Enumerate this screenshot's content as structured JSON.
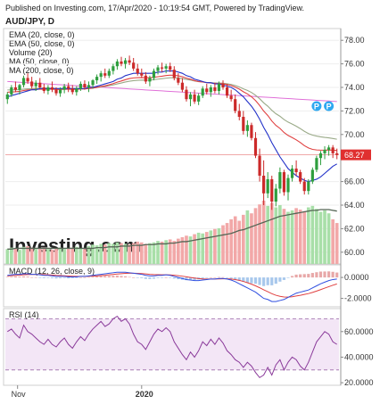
{
  "header": {
    "published": "Published on Investing.com, 17/Apr/2020 - 10:19:54 GMT, Powered by TradingView.",
    "symbol": "AUD/JPY, D"
  },
  "legend": [
    "EMA (20, close, 0)",
    "EMA (50, close, 0)",
    "Volume (20)",
    "MA (50, close, 0)",
    "MA (200, close, 0)"
  ],
  "watermark": "Investing.com",
  "markers": [
    "P",
    "P"
  ],
  "colors": {
    "up": "#2e9e3e",
    "down": "#cc2a2a",
    "ema20": "#2433c9",
    "ema50": "#e04040",
    "ma50": "#9aaa88",
    "ma200": "#e070d8",
    "vol_up": "#a8dfa8",
    "vol_down": "#f2a8a8",
    "vol_ma": "#556655",
    "macd": "#3050e0",
    "signal": "#e04040",
    "rsi": "#8a3a9a",
    "rsi_band": "#f3e6f6",
    "last_price_bg": "#e03030"
  },
  "chart_data": [
    {
      "type": "candlestick",
      "title": "AUD/JPY, D",
      "x": [
        "Nov",
        "2020"
      ],
      "ylim": [
        59,
        79
      ],
      "yticks": [
        "78.00",
        "76.00",
        "74.00",
        "72.00",
        "70.00",
        "68.27",
        "66.00",
        "64.00",
        "62.00",
        "60.00"
      ],
      "last_price": "68.27",
      "candles": [
        [
          73.0,
          73.6,
          72.6,
          73.4
        ],
        [
          73.4,
          74.2,
          73.2,
          74.0
        ],
        [
          74.0,
          74.5,
          73.6,
          73.8
        ],
        [
          73.8,
          74.3,
          73.4,
          74.2
        ],
        [
          74.2,
          75.0,
          74.0,
          74.8
        ],
        [
          74.8,
          75.2,
          74.3,
          74.5
        ],
        [
          74.5,
          74.9,
          73.9,
          74.1
        ],
        [
          74.1,
          74.6,
          73.7,
          74.4
        ],
        [
          74.4,
          74.8,
          73.9,
          74.0
        ],
        [
          74.0,
          74.3,
          73.5,
          73.7
        ],
        [
          73.7,
          74.2,
          73.4,
          74.0
        ],
        [
          74.0,
          74.5,
          73.6,
          73.8
        ],
        [
          73.8,
          74.0,
          73.3,
          73.5
        ],
        [
          73.5,
          74.0,
          73.2,
          73.8
        ],
        [
          73.8,
          74.3,
          73.5,
          74.1
        ],
        [
          74.1,
          74.4,
          73.6,
          73.9
        ],
        [
          73.9,
          74.2,
          73.4,
          73.6
        ],
        [
          73.6,
          74.1,
          73.3,
          73.9
        ],
        [
          73.9,
          74.5,
          73.7,
          74.3
        ],
        [
          74.3,
          74.6,
          73.8,
          74.0
        ],
        [
          74.0,
          74.5,
          73.6,
          74.2
        ],
        [
          74.2,
          74.7,
          73.9,
          74.6
        ],
        [
          74.6,
          75.1,
          74.3,
          74.9
        ],
        [
          74.9,
          75.4,
          74.5,
          75.2
        ],
        [
          75.2,
          75.6,
          74.8,
          75.0
        ],
        [
          75.0,
          75.6,
          74.8,
          75.4
        ],
        [
          75.4,
          76.0,
          75.1,
          75.8
        ],
        [
          75.8,
          76.4,
          75.5,
          76.2
        ],
        [
          76.2,
          76.6,
          75.8,
          76.0
        ],
        [
          76.0,
          76.5,
          75.6,
          76.3
        ],
        [
          76.3,
          76.7,
          75.9,
          76.1
        ],
        [
          76.1,
          76.5,
          75.4,
          75.6
        ],
        [
          75.6,
          76.0,
          75.0,
          75.2
        ],
        [
          75.2,
          75.6,
          74.8,
          75.0
        ],
        [
          75.0,
          75.3,
          74.3,
          74.5
        ],
        [
          74.5,
          75.0,
          74.1,
          74.8
        ],
        [
          74.8,
          75.6,
          74.6,
          75.4
        ],
        [
          75.4,
          75.9,
          75.1,
          75.7
        ],
        [
          75.7,
          76.1,
          75.3,
          75.6
        ],
        [
          75.6,
          76.0,
          75.2,
          75.8
        ],
        [
          75.8,
          76.1,
          75.3,
          75.5
        ],
        [
          75.5,
          75.8,
          74.6,
          74.8
        ],
        [
          74.8,
          75.2,
          74.2,
          74.4
        ],
        [
          74.4,
          74.8,
          73.6,
          73.8
        ],
        [
          73.8,
          74.1,
          72.8,
          73.0
        ],
        [
          73.0,
          73.6,
          72.4,
          73.4
        ],
        [
          73.4,
          73.8,
          72.6,
          72.8
        ],
        [
          72.8,
          73.5,
          72.5,
          73.3
        ],
        [
          73.3,
          74.1,
          73.1,
          73.9
        ],
        [
          73.9,
          74.3,
          73.4,
          73.6
        ],
        [
          73.6,
          74.2,
          73.2,
          74.0
        ],
        [
          74.0,
          74.4,
          73.5,
          73.7
        ],
        [
          73.7,
          74.5,
          73.4,
          74.3
        ],
        [
          74.3,
          74.6,
          73.8,
          74.0
        ],
        [
          74.0,
          74.3,
          73.1,
          73.3
        ],
        [
          73.3,
          73.8,
          72.8,
          73.0
        ],
        [
          73.0,
          73.4,
          71.8,
          72.0
        ],
        [
          72.0,
          72.6,
          71.2,
          71.5
        ],
        [
          71.5,
          72.0,
          70.0,
          70.3
        ],
        [
          70.3,
          71.2,
          69.8,
          70.8
        ],
        [
          70.8,
          71.0,
          69.5,
          69.7
        ],
        [
          69.7,
          70.2,
          68.0,
          68.2
        ],
        [
          68.2,
          68.8,
          66.0,
          66.5
        ],
        [
          66.5,
          67.8,
          64.0,
          65.0
        ],
        [
          65.0,
          66.8,
          64.6,
          66.2
        ],
        [
          66.2,
          66.5,
          63.6,
          64.3
        ],
        [
          64.3,
          65.8,
          63.9,
          65.4
        ],
        [
          65.4,
          67.2,
          65.0,
          66.8
        ],
        [
          66.8,
          67.0,
          64.8,
          65.1
        ],
        [
          65.1,
          66.6,
          64.4,
          66.3
        ],
        [
          66.3,
          67.4,
          66.0,
          67.1
        ],
        [
          67.1,
          67.8,
          66.5,
          66.8
        ],
        [
          66.8,
          67.0,
          65.8,
          66.0
        ],
        [
          66.0,
          66.3,
          64.9,
          65.2
        ],
        [
          65.2,
          66.2,
          64.9,
          66.0
        ],
        [
          66.0,
          67.2,
          65.8,
          67.0
        ],
        [
          67.0,
          68.2,
          66.8,
          68.0
        ],
        [
          68.0,
          68.6,
          67.4,
          68.4
        ],
        [
          68.4,
          69.0,
          67.9,
          68.7
        ],
        [
          68.7,
          69.1,
          68.2,
          68.9
        ],
        [
          68.9,
          69.1,
          68.0,
          68.4
        ],
        [
          68.4,
          68.8,
          67.9,
          68.27
        ]
      ],
      "ema20": [
        73.2,
        73.3,
        73.4,
        73.5,
        73.6,
        73.7,
        73.8,
        73.8,
        73.9,
        73.9,
        73.9,
        73.9,
        73.9,
        73.9,
        73.9,
        73.9,
        73.9,
        73.9,
        73.9,
        73.9,
        74.0,
        74.0,
        74.1,
        74.2,
        74.3,
        74.4,
        74.5,
        74.7,
        74.8,
        75.0,
        75.1,
        75.2,
        75.2,
        75.2,
        75.2,
        75.2,
        75.2,
        75.3,
        75.3,
        75.4,
        75.4,
        75.4,
        75.3,
        75.2,
        75.0,
        74.9,
        74.7,
        74.6,
        74.5,
        74.4,
        74.4,
        74.3,
        74.3,
        74.2,
        74.1,
        74.0,
        73.8,
        73.5,
        73.2,
        72.8,
        72.4,
        71.9,
        71.3,
        70.6,
        70.0,
        69.3,
        68.7,
        68.1,
        67.6,
        67.1,
        66.8,
        66.5,
        66.3,
        66.1,
        66.0,
        66.1,
        66.2,
        66.4,
        66.7,
        67.0,
        67.3,
        67.5
      ]
    },
    {
      "type": "bar",
      "title": "Volume (20)",
      "values": [
        20,
        22,
        21,
        19,
        23,
        24,
        22,
        20,
        21,
        22,
        20,
        19,
        21,
        22,
        20,
        21,
        22,
        23,
        21,
        20,
        24,
        26,
        25,
        27,
        26,
        28,
        27,
        29,
        28,
        27,
        26,
        28,
        30,
        29,
        27,
        28,
        29,
        31,
        30,
        32,
        33,
        31,
        34,
        36,
        38,
        37,
        40,
        42,
        41,
        43,
        45,
        47,
        48,
        52,
        55,
        60,
        64,
        58,
        66,
        72,
        68,
        75,
        80,
        85,
        78,
        82,
        76,
        79,
        74,
        70,
        72,
        75,
        73,
        71,
        76,
        78,
        74,
        70,
        72,
        68,
        60,
        55
      ],
      "ma": [
        20,
        20,
        21,
        21,
        21,
        21,
        21,
        21,
        21,
        21,
        21,
        21,
        21,
        21,
        21,
        21,
        21,
        21,
        21,
        21,
        21,
        21,
        22,
        22,
        22,
        23,
        23,
        23,
        24,
        24,
        24,
        25,
        25,
        25,
        26,
        26,
        26,
        27,
        27,
        27,
        28,
        28,
        29,
        30,
        30,
        31,
        32,
        33,
        34,
        35,
        36,
        37,
        38,
        39,
        40,
        41,
        43,
        45,
        46,
        48,
        50,
        52,
        54,
        56,
        58,
        60,
        62,
        64,
        65,
        66,
        67,
        68,
        69,
        70,
        71,
        72,
        72,
        73,
        73,
        73,
        72,
        71
      ]
    },
    {
      "type": "line",
      "title": "MACD (12, 26, close, 9)",
      "yticks": [
        "0.0000",
        "-2.0000"
      ],
      "ylim": [
        -2.8,
        1.2
      ],
      "macd": [
        0.2,
        0.25,
        0.3,
        0.3,
        0.35,
        0.35,
        0.3,
        0.3,
        0.25,
        0.2,
        0.2,
        0.15,
        0.1,
        0.1,
        0.1,
        0.05,
        0.05,
        0.05,
        0.1,
        0.1,
        0.15,
        0.2,
        0.25,
        0.3,
        0.35,
        0.4,
        0.45,
        0.5,
        0.5,
        0.5,
        0.45,
        0.4,
        0.35,
        0.3,
        0.2,
        0.15,
        0.15,
        0.2,
        0.2,
        0.25,
        0.2,
        0.1,
        0.0,
        -0.1,
        -0.2,
        -0.25,
        -0.3,
        -0.3,
        -0.25,
        -0.2,
        -0.15,
        -0.15,
        -0.1,
        -0.1,
        -0.15,
        -0.25,
        -0.4,
        -0.6,
        -0.8,
        -1.0,
        -1.2,
        -1.4,
        -1.7,
        -2.0,
        -2.1,
        -2.3,
        -2.3,
        -2.2,
        -2.1,
        -1.9,
        -1.7,
        -1.5,
        -1.4,
        -1.3,
        -1.2,
        -1.0,
        -0.8,
        -0.6,
        -0.45,
        -0.3,
        -0.2,
        -0.15
      ],
      "signal": [
        0.15,
        0.18,
        0.2,
        0.22,
        0.25,
        0.27,
        0.28,
        0.28,
        0.28,
        0.27,
        0.25,
        0.23,
        0.2,
        0.18,
        0.16,
        0.14,
        0.12,
        0.1,
        0.1,
        0.1,
        0.11,
        0.13,
        0.15,
        0.18,
        0.21,
        0.25,
        0.29,
        0.33,
        0.36,
        0.39,
        0.4,
        0.4,
        0.39,
        0.37,
        0.34,
        0.3,
        0.27,
        0.26,
        0.25,
        0.25,
        0.24,
        0.21,
        0.17,
        0.12,
        0.06,
        0.0,
        -0.06,
        -0.11,
        -0.14,
        -0.15,
        -0.15,
        -0.15,
        -0.14,
        -0.13,
        -0.13,
        -0.15,
        -0.2,
        -0.28,
        -0.38,
        -0.5,
        -0.64,
        -0.8,
        -0.98,
        -1.18,
        -1.36,
        -1.55,
        -1.7,
        -1.8,
        -1.86,
        -1.87,
        -1.84,
        -1.77,
        -1.7,
        -1.62,
        -1.54,
        -1.43,
        -1.3,
        -1.16,
        -1.02,
        -0.88,
        -0.74,
        -0.62
      ]
    },
    {
      "type": "line",
      "title": "RSI (14)",
      "yticks": [
        "60.0000",
        "40.0000",
        "20.0000"
      ],
      "ylim": [
        18,
        78
      ],
      "bands": [
        70,
        30
      ],
      "values": [
        60,
        62,
        58,
        55,
        65,
        60,
        58,
        55,
        52,
        50,
        54,
        50,
        48,
        52,
        55,
        50,
        47,
        52,
        56,
        53,
        58,
        62,
        65,
        68,
        64,
        66,
        70,
        72,
        68,
        70,
        66,
        58,
        52,
        50,
        46,
        52,
        58,
        62,
        60,
        63,
        60,
        52,
        47,
        42,
        38,
        44,
        40,
        45,
        52,
        49,
        54,
        50,
        55,
        51,
        45,
        42,
        38,
        36,
        32,
        36,
        33,
        28,
        24,
        26,
        32,
        26,
        34,
        38,
        30,
        36,
        40,
        38,
        33,
        30,
        36,
        44,
        52,
        56,
        60,
        58,
        52,
        50
      ]
    }
  ]
}
